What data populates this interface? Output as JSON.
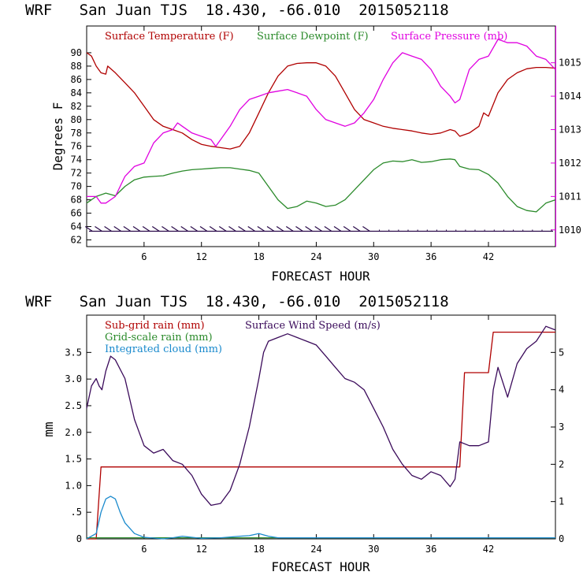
{
  "chart_data": [
    {
      "type": "line",
      "title": "WRF   San Juan TJS  18.430, -66.010  2015052118",
      "xlabel": "FORECAST HOUR",
      "ylabel": "Degrees F",
      "xlim": [
        0,
        49
      ],
      "ylim": [
        61,
        94
      ],
      "y2lim": [
        1009.5,
        1016.1
      ],
      "x_ticks": [
        6,
        12,
        18,
        24,
        30,
        36,
        42
      ],
      "y_ticks": [
        62,
        64,
        66,
        68,
        70,
        72,
        74,
        76,
        78,
        80,
        82,
        84,
        86,
        88,
        90
      ],
      "y2_ticks": [
        1010,
        1011,
        1012,
        1013,
        1014,
        1015
      ],
      "grid": false,
      "legend_position": "top",
      "series": [
        {
          "name": "Surface Temperature (F)",
          "axis": "left",
          "color": "#b00000",
          "x": [
            0,
            0.5,
            1,
            1.5,
            2,
            2.2,
            3,
            4,
            5,
            6,
            7,
            8,
            9,
            10,
            11,
            12,
            13,
            14,
            15,
            16,
            17,
            18,
            19,
            20,
            21,
            22,
            23,
            24,
            25,
            26,
            27,
            28,
            29,
            30,
            31,
            32,
            33,
            34,
            35,
            36,
            37,
            38,
            38.5,
            39,
            40,
            41,
            41.5,
            42,
            43,
            44,
            45,
            46,
            47,
            48,
            49
          ],
          "y": [
            90,
            89.5,
            88,
            87,
            86.8,
            88,
            87,
            85.5,
            84,
            82,
            80,
            79,
            78.5,
            78,
            77,
            76.3,
            76,
            75.8,
            75.6,
            76,
            78,
            81,
            84,
            86.5,
            88,
            88.4,
            88.5,
            88.5,
            88,
            86.5,
            84,
            81.5,
            80,
            79.5,
            79,
            78.7,
            78.5,
            78.3,
            78,
            77.8,
            78,
            78.5,
            78.3,
            77.5,
            78,
            79,
            81,
            80.5,
            84,
            86,
            87,
            87.6,
            87.8,
            87.8,
            87.7
          ]
        },
        {
          "name": "Surface Dewpoint (F)",
          "axis": "left",
          "color": "#2a8a2a",
          "x": [
            0,
            1,
            2,
            3,
            4,
            5,
            6,
            7,
            8,
            9,
            10,
            11,
            12,
            13,
            14,
            15,
            16,
            17,
            18,
            19,
            20,
            21,
            22,
            23,
            24,
            25,
            26,
            27,
            28,
            29,
            30,
            31,
            32,
            33,
            34,
            35,
            36,
            37,
            38,
            38.5,
            39,
            40,
            41,
            42,
            43,
            44,
            45,
            46,
            47,
            48,
            49
          ],
          "y": [
            67.5,
            68.5,
            69,
            68.6,
            70,
            71,
            71.4,
            71.5,
            71.6,
            72,
            72.3,
            72.5,
            72.6,
            72.7,
            72.8,
            72.8,
            72.6,
            72.4,
            72,
            70,
            68,
            66.7,
            67,
            67.8,
            67.5,
            67,
            67.2,
            68,
            69.5,
            71,
            72.5,
            73.5,
            73.8,
            73.7,
            74,
            73.6,
            73.7,
            74,
            74.1,
            74,
            73,
            72.6,
            72.5,
            71.8,
            70.5,
            68.5,
            67,
            66.4,
            66.2,
            67.5,
            68
          ]
        },
        {
          "name": "Surface Pressure (mb)",
          "axis": "right",
          "color": "#e000e0",
          "x": [
            0,
            1,
            1.5,
            2,
            3,
            4,
            5,
            6,
            7,
            8,
            9,
            9.5,
            10,
            11,
            12,
            13,
            13.5,
            14,
            15,
            16,
            17,
            18,
            19,
            20,
            21,
            22,
            23,
            24,
            25,
            26,
            27,
            28,
            29,
            30,
            31,
            32,
            33,
            34,
            35,
            36,
            37,
            38,
            38.5,
            39,
            40,
            41,
            42,
            43,
            44,
            45,
            46,
            47,
            48,
            49
          ],
          "y": [
            1011,
            1011,
            1010.8,
            1010.8,
            1011,
            1011.6,
            1011.9,
            1012,
            1012.6,
            1012.9,
            1013,
            1013.2,
            1013.1,
            1012.9,
            1012.8,
            1012.7,
            1012.5,
            1012.7,
            1013.1,
            1013.6,
            1013.9,
            1014,
            1014.1,
            1014.15,
            1014.2,
            1014.1,
            1014,
            1013.6,
            1013.3,
            1013.2,
            1013.1,
            1013.2,
            1013.5,
            1013.9,
            1014.5,
            1015,
            1015.3,
            1015.2,
            1015.1,
            1014.8,
            1014.3,
            1014,
            1013.8,
            1013.9,
            1014.8,
            1015.1,
            1015.2,
            1015.7,
            1015.6,
            1015.6,
            1015.5,
            1015.2,
            1015.1,
            1014.8
          ]
        }
      ],
      "wind_barbs": {
        "y": 63.3,
        "color": "#2a0a4a"
      }
    },
    {
      "type": "line",
      "title": "WRF   San Juan TJS  18.430, -66.010  2015052118",
      "xlabel": "FORECAST HOUR",
      "ylabel": "mm",
      "xlim": [
        0,
        49
      ],
      "ylim": [
        0,
        4.2
      ],
      "y2lim": [
        0,
        6
      ],
      "x_ticks": [
        6,
        12,
        18,
        24,
        30,
        36,
        42
      ],
      "y_ticks": [
        0,
        0.5,
        1.0,
        1.5,
        2.0,
        2.5,
        3.0,
        3.5
      ],
      "y_tick_labels": [
        "0",
        ".5",
        "1.0",
        "1.5",
        "2.0",
        "2.5",
        "3.0",
        "3.5"
      ],
      "y2_ticks": [
        0,
        1,
        2,
        3,
        4,
        5
      ],
      "grid": false,
      "legend_position": "top",
      "series": [
        {
          "name": "Sub-grid rain (mm)",
          "axis": "left",
          "color": "#b00000",
          "x": [
            0,
            1,
            1.5,
            2,
            38,
            39,
            39.5,
            42,
            42.5,
            49
          ],
          "y": [
            0,
            0,
            1.35,
            1.35,
            1.35,
            1.35,
            3.12,
            3.12,
            3.88,
            3.88
          ]
        },
        {
          "name": "Grid-scale rain (mm)",
          "axis": "left",
          "color": "#2a8a2a",
          "x": [
            0,
            49
          ],
          "y": [
            0.02,
            0.02
          ]
        },
        {
          "name": "Integrated cloud (mm)",
          "axis": "left",
          "color": "#1a8acd",
          "x": [
            0,
            1,
            1.5,
            2,
            2.5,
            3,
            3.5,
            4,
            5,
            6,
            8,
            9,
            10,
            11,
            12,
            14,
            16,
            17,
            18,
            19,
            20,
            49
          ],
          "y": [
            0,
            0.1,
            0.5,
            0.75,
            0.8,
            0.75,
            0.5,
            0.3,
            0.1,
            0.03,
            0,
            0.02,
            0.05,
            0.03,
            0.01,
            0.02,
            0.05,
            0.06,
            0.1,
            0.05,
            0.02,
            0.02
          ]
        },
        {
          "name": "Surface Wind Speed (m/s)",
          "axis": "right",
          "color": "#3a0a5a",
          "x": [
            0,
            0.5,
            1,
            1.3,
            1.6,
            2,
            2.5,
            3,
            4,
            5,
            6,
            7,
            8,
            9,
            10,
            11,
            12,
            13,
            14,
            15,
            16,
            17,
            18,
            18.5,
            19,
            20,
            21,
            22,
            23,
            24,
            25,
            26,
            27,
            28,
            29,
            30,
            31,
            32,
            33,
            34,
            35,
            36,
            37,
            38,
            38.5,
            39,
            40,
            41,
            42,
            42.5,
            43,
            44,
            45,
            46,
            47,
            48,
            49
          ],
          "y": [
            3.5,
            4.1,
            4.3,
            4.1,
            4.0,
            4.5,
            4.9,
            4.8,
            4.3,
            3.2,
            2.5,
            2.3,
            2.4,
            2.1,
            2.0,
            1.7,
            1.2,
            0.9,
            0.95,
            1.3,
            2.0,
            3.0,
            4.3,
            5.0,
            5.3,
            5.4,
            5.5,
            5.4,
            5.3,
            5.2,
            4.9,
            4.6,
            4.3,
            4.2,
            4.0,
            3.5,
            3.0,
            2.4,
            2.0,
            1.7,
            1.6,
            1.8,
            1.7,
            1.4,
            1.6,
            2.6,
            2.5,
            2.5,
            2.6,
            4.0,
            4.6,
            3.8,
            4.7,
            5.1,
            5.3,
            5.7,
            5.6
          ]
        }
      ]
    }
  ]
}
